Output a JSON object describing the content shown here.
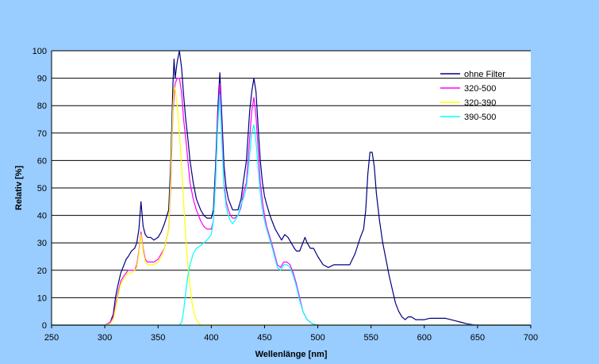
{
  "chart_data": {
    "type": "line",
    "title": "",
    "xlabel": "Wellenlänge [nm]",
    "ylabel": "Relativ [%]",
    "xlim": [
      250,
      700
    ],
    "ylim": [
      0,
      100
    ],
    "xticks": [
      250,
      300,
      350,
      400,
      450,
      500,
      550,
      600,
      650,
      700
    ],
    "yticks": [
      0,
      10,
      20,
      30,
      40,
      50,
      60,
      70,
      80,
      90,
      100
    ],
    "grid": "horizontal",
    "legend_position": "top-right",
    "plot_background": "#ffffff",
    "chart_background": "#99ccff",
    "series": [
      {
        "name": "ohne Filter",
        "color": "#000080",
        "points": [
          [
            250,
            0
          ],
          [
            300,
            0
          ],
          [
            305,
            1
          ],
          [
            308,
            4
          ],
          [
            310,
            10
          ],
          [
            312,
            14
          ],
          [
            315,
            19
          ],
          [
            318,
            22
          ],
          [
            320,
            24
          ],
          [
            322,
            25
          ],
          [
            325,
            27
          ],
          [
            328,
            28
          ],
          [
            330,
            30
          ],
          [
            332,
            35
          ],
          [
            334,
            45
          ],
          [
            336,
            36
          ],
          [
            338,
            33
          ],
          [
            340,
            32
          ],
          [
            343,
            32
          ],
          [
            346,
            31
          ],
          [
            350,
            32
          ],
          [
            353,
            34
          ],
          [
            356,
            37
          ],
          [
            360,
            42
          ],
          [
            362,
            60
          ],
          [
            364,
            88
          ],
          [
            365,
            97
          ],
          [
            366,
            90
          ],
          [
            368,
            96
          ],
          [
            370,
            100
          ],
          [
            372,
            94
          ],
          [
            374,
            84
          ],
          [
            376,
            75
          ],
          [
            378,
            68
          ],
          [
            380,
            60
          ],
          [
            383,
            52
          ],
          [
            386,
            46
          ],
          [
            390,
            42
          ],
          [
            393,
            40
          ],
          [
            396,
            39
          ],
          [
            400,
            39
          ],
          [
            402,
            42
          ],
          [
            404,
            58
          ],
          [
            406,
            78
          ],
          [
            408,
            92
          ],
          [
            410,
            75
          ],
          [
            412,
            58
          ],
          [
            414,
            50
          ],
          [
            416,
            46
          ],
          [
            418,
            44
          ],
          [
            420,
            42
          ],
          [
            422,
            42
          ],
          [
            425,
            42
          ],
          [
            428,
            46
          ],
          [
            430,
            52
          ],
          [
            433,
            60
          ],
          [
            436,
            78
          ],
          [
            438,
            85
          ],
          [
            440,
            90
          ],
          [
            442,
            85
          ],
          [
            444,
            72
          ],
          [
            446,
            60
          ],
          [
            448,
            52
          ],
          [
            450,
            47
          ],
          [
            452,
            44
          ],
          [
            455,
            40
          ],
          [
            458,
            37
          ],
          [
            460,
            35
          ],
          [
            463,
            33
          ],
          [
            466,
            31
          ],
          [
            469,
            33
          ],
          [
            472,
            32
          ],
          [
            475,
            30
          ],
          [
            478,
            28
          ],
          [
            480,
            27
          ],
          [
            483,
            27
          ],
          [
            486,
            30
          ],
          [
            488,
            32
          ],
          [
            490,
            30
          ],
          [
            493,
            28
          ],
          [
            496,
            28
          ],
          [
            500,
            25
          ],
          [
            505,
            22
          ],
          [
            510,
            21
          ],
          [
            515,
            22
          ],
          [
            520,
            22
          ],
          [
            525,
            22
          ],
          [
            530,
            22
          ],
          [
            535,
            26
          ],
          [
            540,
            32
          ],
          [
            543,
            35
          ],
          [
            545,
            42
          ],
          [
            547,
            55
          ],
          [
            549,
            63
          ],
          [
            551,
            63
          ],
          [
            553,
            58
          ],
          [
            555,
            48
          ],
          [
            558,
            38
          ],
          [
            561,
            30
          ],
          [
            564,
            24
          ],
          [
            567,
            18
          ],
          [
            570,
            13
          ],
          [
            573,
            8
          ],
          [
            576,
            5
          ],
          [
            579,
            3
          ],
          [
            582,
            2
          ],
          [
            585,
            3
          ],
          [
            588,
            3
          ],
          [
            592,
            2
          ],
          [
            596,
            2
          ],
          [
            600,
            2
          ],
          [
            605,
            2.5
          ],
          [
            610,
            2.5
          ],
          [
            615,
            2.5
          ],
          [
            620,
            2.5
          ],
          [
            625,
            2
          ],
          [
            630,
            1.5
          ],
          [
            635,
            1
          ],
          [
            640,
            0.5
          ],
          [
            645,
            0.2
          ],
          [
            650,
            0
          ],
          [
            700,
            0
          ]
        ]
      },
      {
        "name": "320-500",
        "color": "#ff00ff",
        "points": [
          [
            250,
            0
          ],
          [
            300,
            0
          ],
          [
            305,
            1
          ],
          [
            308,
            3
          ],
          [
            310,
            7
          ],
          [
            312,
            11
          ],
          [
            315,
            16
          ],
          [
            318,
            18
          ],
          [
            320,
            19
          ],
          [
            322,
            20
          ],
          [
            325,
            20
          ],
          [
            328,
            20
          ],
          [
            330,
            22
          ],
          [
            332,
            27
          ],
          [
            334,
            34
          ],
          [
            336,
            28
          ],
          [
            338,
            24
          ],
          [
            340,
            23
          ],
          [
            343,
            23
          ],
          [
            346,
            23
          ],
          [
            350,
            24
          ],
          [
            353,
            26
          ],
          [
            356,
            28
          ],
          [
            360,
            35
          ],
          [
            362,
            52
          ],
          [
            364,
            78
          ],
          [
            366,
            88
          ],
          [
            368,
            90
          ],
          [
            370,
            90
          ],
          [
            372,
            85
          ],
          [
            374,
            75
          ],
          [
            376,
            68
          ],
          [
            378,
            60
          ],
          [
            380,
            52
          ],
          [
            383,
            46
          ],
          [
            386,
            42
          ],
          [
            390,
            38
          ],
          [
            393,
            36
          ],
          [
            396,
            35
          ],
          [
            400,
            35
          ],
          [
            402,
            38
          ],
          [
            404,
            54
          ],
          [
            406,
            75
          ],
          [
            408,
            88
          ],
          [
            410,
            70
          ],
          [
            412,
            52
          ],
          [
            414,
            45
          ],
          [
            416,
            42
          ],
          [
            418,
            40
          ],
          [
            420,
            39
          ],
          [
            422,
            39
          ],
          [
            425,
            40
          ],
          [
            428,
            43
          ],
          [
            430,
            48
          ],
          [
            433,
            52
          ],
          [
            436,
            68
          ],
          [
            438,
            78
          ],
          [
            440,
            83
          ],
          [
            442,
            76
          ],
          [
            444,
            64
          ],
          [
            446,
            52
          ],
          [
            448,
            45
          ],
          [
            450,
            40
          ],
          [
            452,
            36
          ],
          [
            455,
            32
          ],
          [
            458,
            28
          ],
          [
            460,
            25
          ],
          [
            462,
            22
          ],
          [
            465,
            21
          ],
          [
            468,
            23
          ],
          [
            471,
            23
          ],
          [
            474,
            22
          ],
          [
            477,
            19
          ],
          [
            480,
            15
          ],
          [
            483,
            10
          ],
          [
            486,
            5
          ],
          [
            490,
            2
          ],
          [
            495,
            0.5
          ],
          [
            500,
            0
          ],
          [
            700,
            0
          ]
        ]
      },
      {
        "name": "320-390",
        "color": "#ffff00",
        "points": [
          [
            250,
            0
          ],
          [
            300,
            0
          ],
          [
            305,
            0.5
          ],
          [
            308,
            2
          ],
          [
            310,
            6
          ],
          [
            312,
            10
          ],
          [
            315,
            15
          ],
          [
            318,
            17
          ],
          [
            320,
            18
          ],
          [
            322,
            19
          ],
          [
            325,
            19
          ],
          [
            328,
            20
          ],
          [
            330,
            21
          ],
          [
            332,
            26
          ],
          [
            334,
            33
          ],
          [
            336,
            27
          ],
          [
            338,
            23
          ],
          [
            340,
            22
          ],
          [
            343,
            22
          ],
          [
            346,
            22
          ],
          [
            350,
            23
          ],
          [
            353,
            25
          ],
          [
            356,
            28
          ],
          [
            360,
            35
          ],
          [
            362,
            55
          ],
          [
            364,
            80
          ],
          [
            365,
            87
          ],
          [
            366,
            86
          ],
          [
            368,
            80
          ],
          [
            370,
            70
          ],
          [
            372,
            58
          ],
          [
            374,
            45
          ],
          [
            376,
            32
          ],
          [
            378,
            22
          ],
          [
            380,
            14
          ],
          [
            382,
            8
          ],
          [
            384,
            4
          ],
          [
            386,
            2
          ],
          [
            388,
            1
          ],
          [
            390,
            0
          ],
          [
            700,
            0
          ]
        ]
      },
      {
        "name": "390-500",
        "color": "#00ffff",
        "points": [
          [
            250,
            0
          ],
          [
            370,
            0
          ],
          [
            372,
            1
          ],
          [
            374,
            5
          ],
          [
            376,
            12
          ],
          [
            378,
            18
          ],
          [
            380,
            22
          ],
          [
            383,
            26
          ],
          [
            386,
            28
          ],
          [
            390,
            29
          ],
          [
            393,
            30
          ],
          [
            396,
            31
          ],
          [
            400,
            33
          ],
          [
            402,
            38
          ],
          [
            404,
            52
          ],
          [
            406,
            72
          ],
          [
            408,
            84
          ],
          [
            410,
            66
          ],
          [
            412,
            50
          ],
          [
            414,
            43
          ],
          [
            416,
            40
          ],
          [
            418,
            38
          ],
          [
            420,
            37
          ],
          [
            422,
            38
          ],
          [
            425,
            40
          ],
          [
            428,
            44
          ],
          [
            430,
            46
          ],
          [
            433,
            50
          ],
          [
            436,
            62
          ],
          [
            438,
            70
          ],
          [
            440,
            73
          ],
          [
            442,
            67
          ],
          [
            444,
            57
          ],
          [
            446,
            48
          ],
          [
            448,
            42
          ],
          [
            450,
            38
          ],
          [
            452,
            35
          ],
          [
            455,
            31
          ],
          [
            458,
            27
          ],
          [
            460,
            24
          ],
          [
            462,
            21
          ],
          [
            465,
            20
          ],
          [
            468,
            22
          ],
          [
            471,
            22
          ],
          [
            474,
            21
          ],
          [
            477,
            18
          ],
          [
            480,
            14
          ],
          [
            483,
            9
          ],
          [
            486,
            5
          ],
          [
            490,
            2
          ],
          [
            495,
            0.5
          ],
          [
            500,
            0
          ],
          [
            700,
            0
          ]
        ]
      }
    ]
  }
}
